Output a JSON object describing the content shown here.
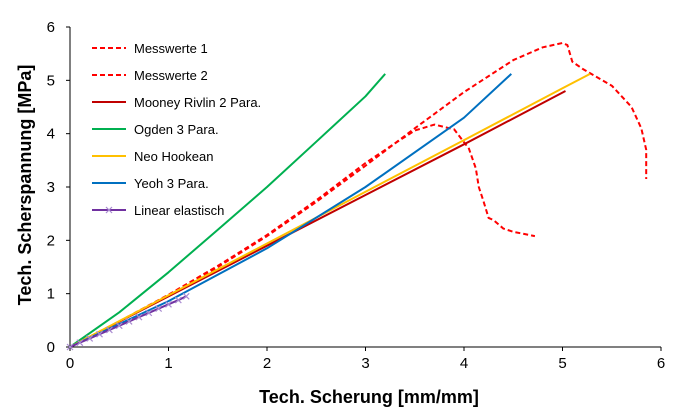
{
  "chart_data": {
    "type": "line",
    "title": "",
    "xlabel": "Tech. Scherung [mm/mm]",
    "ylabel": "Tech. Scherspannung [MPa]",
    "xlim": [
      0,
      6
    ],
    "ylim": [
      0,
      6
    ],
    "xticks": [
      "0",
      "1",
      "2",
      "3",
      "4",
      "5",
      "6"
    ],
    "yticks": [
      "0",
      "1",
      "2",
      "3",
      "4",
      "5",
      "6"
    ],
    "grid": false,
    "legend_position": "top-left",
    "series": [
      {
        "name": "Messwerte 1",
        "color": "#ff0000",
        "style": "dashed",
        "marker": "none",
        "x": [
          0,
          0.5,
          1.0,
          1.5,
          2.0,
          2.5,
          3.0,
          3.3,
          3.5,
          3.7,
          3.9,
          4.05,
          4.12,
          4.15,
          4.2,
          4.25,
          4.3,
          4.4,
          4.5,
          4.72
        ],
        "y": [
          0,
          0.48,
          0.98,
          1.52,
          2.1,
          2.75,
          3.45,
          3.82,
          4.06,
          4.17,
          4.08,
          3.72,
          3.35,
          3.0,
          2.72,
          2.42,
          2.38,
          2.22,
          2.16,
          2.08
        ]
      },
      {
        "name": "Messwerte 2",
        "color": "#ff0000",
        "style": "dashed",
        "marker": "none",
        "x": [
          0,
          0.5,
          1.0,
          1.5,
          2.0,
          2.5,
          3.0,
          3.5,
          4.0,
          4.5,
          4.8,
          5.0,
          5.05,
          5.1,
          5.2,
          5.5,
          5.7,
          5.8,
          5.85,
          5.85
        ],
        "y": [
          0,
          0.48,
          0.97,
          1.5,
          2.08,
          2.72,
          3.4,
          4.1,
          4.78,
          5.38,
          5.62,
          5.7,
          5.66,
          5.35,
          5.22,
          4.9,
          4.5,
          4.1,
          3.7,
          3.15
        ]
      },
      {
        "name": "Mooney Rivlin 2 Para.",
        "color": "#c00000",
        "style": "solid",
        "marker": "none",
        "x": [
          0,
          1,
          2,
          3,
          4,
          5.03
        ],
        "y": [
          0,
          0.95,
          1.9,
          2.85,
          3.8,
          4.8
        ]
      },
      {
        "name": "Ogden 3 Para.",
        "color": "#00b050",
        "style": "solid",
        "marker": "none",
        "x": [
          0,
          0.5,
          1.0,
          1.5,
          2.0,
          2.5,
          3.0,
          3.2
        ],
        "y": [
          0,
          0.65,
          1.4,
          2.2,
          3.0,
          3.85,
          4.7,
          5.12
        ]
      },
      {
        "name": "Neo Hookean",
        "color": "#ffc000",
        "style": "solid",
        "marker": "none",
        "x": [
          0,
          1,
          2,
          3,
          4,
          5,
          5.28
        ],
        "y": [
          0,
          0.97,
          1.94,
          2.91,
          3.88,
          4.85,
          5.12
        ]
      },
      {
        "name": "Yeoh 3 Para.",
        "color": "#0070c0",
        "style": "solid",
        "marker": "none",
        "x": [
          0,
          1,
          2,
          3,
          4,
          4.48
        ],
        "y": [
          0,
          0.86,
          1.85,
          3.0,
          4.3,
          5.12
        ]
      },
      {
        "name": "Linear elastisch",
        "color": "#7030a0",
        "style": "solid",
        "marker": "x",
        "x": [
          0,
          0.1,
          0.2,
          0.3,
          0.4,
          0.5,
          0.6,
          0.7,
          0.8,
          0.9,
          1.0,
          1.1,
          1.18
        ],
        "y": [
          0,
          0.08,
          0.16,
          0.24,
          0.32,
          0.4,
          0.48,
          0.56,
          0.64,
          0.72,
          0.8,
          0.88,
          0.95
        ]
      }
    ]
  }
}
